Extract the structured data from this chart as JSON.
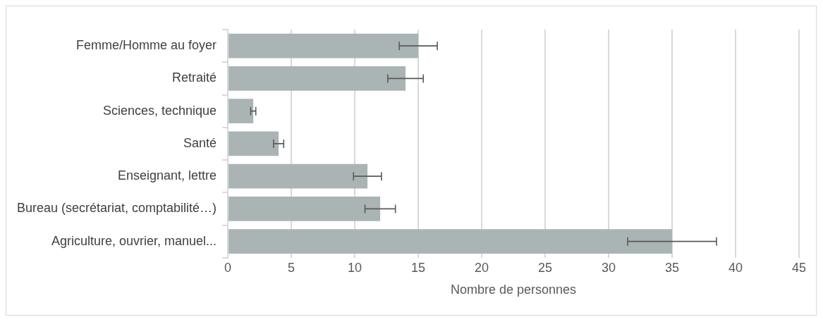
{
  "chart_data": {
    "type": "bar",
    "orientation": "horizontal",
    "xlabel": "Nombre de personnes",
    "categories": [
      "Femme/Homme au foyer",
      "Retraité",
      "Sciences, technique",
      "Santé",
      "Enseignant, lettre",
      "Bureau (secrétariat, comptabilité…)",
      "Agriculture, ouvrier, manuel..."
    ],
    "values": [
      15,
      14,
      2,
      4,
      11,
      12,
      35
    ],
    "errors": [
      1.5,
      1.4,
      0.2,
      0.4,
      1.1,
      1.2,
      3.5
    ],
    "color": "#aab4b4",
    "xlim": [
      0,
      45
    ],
    "xticks": [
      0,
      5,
      10,
      15,
      20,
      25,
      30,
      35,
      40,
      45
    ],
    "grid": "x",
    "legend": false
  }
}
